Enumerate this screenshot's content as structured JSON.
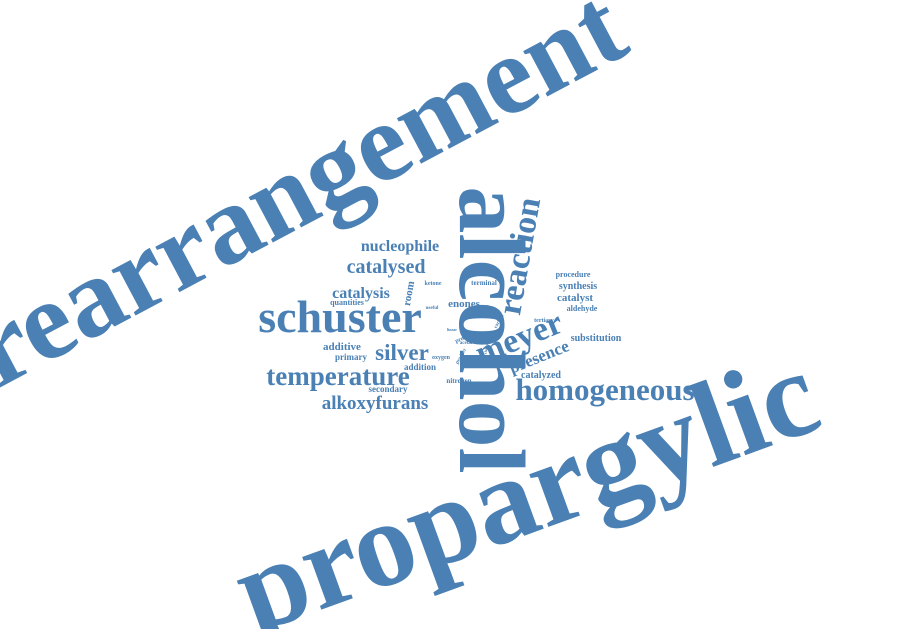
{
  "colors": {
    "word": "#4a80b4",
    "background": "#ffffff"
  },
  "words": [
    "rearrangement",
    "propargylic",
    "alcohol",
    "schuster",
    "reaction",
    "homogeneous",
    "meyer",
    "temperature",
    "catalysed",
    "nucleophile",
    "catalysis",
    "silver",
    "alkoxyfurans",
    "presence",
    "enones",
    "additive",
    "primary",
    "secondary",
    "addition",
    "catalyst",
    "synthesis",
    "procedure",
    "aldehyde",
    "substitution",
    "catalyzed",
    "tertiary",
    "room",
    "quantities",
    "ketone",
    "terminal",
    "oxygen",
    "nitrogen",
    "useful",
    "protic",
    "acetal",
    "product",
    "yield",
    "carbon",
    "linear",
    "chemistry"
  ]
}
